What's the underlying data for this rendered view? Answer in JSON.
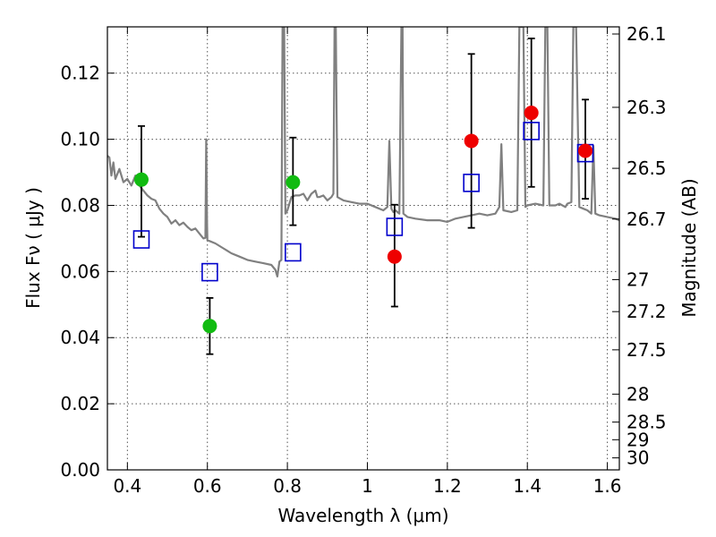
{
  "chart_data": {
    "type": "scatter",
    "xlabel": "Wavelength  λ (μm)",
    "ylabel": "Flux  Fν  ( μJy )",
    "y2label": "Magnitude (AB)",
    "xlim": [
      0.35,
      1.63
    ],
    "ylim": [
      0.0,
      0.134
    ],
    "grid": true,
    "x_ticks": [
      {
        "value": 0.4,
        "label": "0.4"
      },
      {
        "value": 0.6,
        "label": "0.6"
      },
      {
        "value": 0.8,
        "label": "0.8"
      },
      {
        "value": 1.0,
        "label": "1"
      },
      {
        "value": 1.2,
        "label": "1.2"
      },
      {
        "value": 1.4,
        "label": "1.4"
      },
      {
        "value": 1.6,
        "label": "1.6"
      }
    ],
    "y_ticks": [
      {
        "value": 0.0,
        "label": "0.00"
      },
      {
        "value": 0.02,
        "label": "0.02"
      },
      {
        "value": 0.04,
        "label": "0.04"
      },
      {
        "value": 0.06,
        "label": "0.06"
      },
      {
        "value": 0.08,
        "label": "0.08"
      },
      {
        "value": 0.1,
        "label": "0.10"
      },
      {
        "value": 0.12,
        "label": "0.12"
      }
    ],
    "y2_ticks": [
      {
        "mag": 26.1,
        "label": "26.1"
      },
      {
        "mag": 26.3,
        "label": "26.3"
      },
      {
        "mag": 26.5,
        "label": "26.5"
      },
      {
        "mag": 26.7,
        "label": "26.7"
      },
      {
        "mag": 27.0,
        "label": "27"
      },
      {
        "mag": 27.2,
        "label": "27.2"
      },
      {
        "mag": 27.5,
        "label": "27.5"
      },
      {
        "mag": 28.0,
        "label": "28"
      },
      {
        "mag": 28.5,
        "label": "28.5"
      },
      {
        "mag": 29.0,
        "label": "29"
      },
      {
        "mag": 30.0,
        "label": "30"
      }
    ],
    "colors": {
      "green": "#11bb11",
      "red": "#ee0000",
      "model": "#0000cc",
      "spectrum": "#808080"
    },
    "series": [
      {
        "name": "green-detections",
        "kind": "errorbar-point",
        "color": "#11bb11",
        "points": [
          {
            "x": 0.435,
            "y": 0.0878,
            "ylo": 0.0705,
            "yhi": 0.104
          },
          {
            "x": 0.606,
            "y": 0.0435,
            "ylo": 0.035,
            "yhi": 0.052
          },
          {
            "x": 0.814,
            "y": 0.087,
            "ylo": 0.074,
            "yhi": 0.1005
          }
        ]
      },
      {
        "name": "red-detections",
        "kind": "errorbar-point",
        "color": "#ee0000",
        "points": [
          {
            "x": 1.068,
            "y": 0.0645,
            "ylo": 0.0494,
            "yhi": 0.0802
          },
          {
            "x": 1.26,
            "y": 0.0995,
            "ylo": 0.0732,
            "yhi": 0.1258
          },
          {
            "x": 1.41,
            "y": 0.108,
            "ylo": 0.0856,
            "yhi": 0.1305
          },
          {
            "x": 1.545,
            "y": 0.0965,
            "ylo": 0.082,
            "yhi": 0.112
          }
        ]
      },
      {
        "name": "model-photometry",
        "kind": "open-square",
        "color": "#0000cc",
        "points": [
          {
            "x": 0.435,
            "y": 0.0697
          },
          {
            "x": 0.606,
            "y": 0.0598
          },
          {
            "x": 0.814,
            "y": 0.0658
          },
          {
            "x": 1.068,
            "y": 0.0735
          },
          {
            "x": 1.26,
            "y": 0.0868
          },
          {
            "x": 1.41,
            "y": 0.1025
          },
          {
            "x": 1.545,
            "y": 0.0958
          }
        ]
      },
      {
        "name": "model-spectrum",
        "kind": "line",
        "color": "#808080",
        "points": [
          [
            0.35,
            0.095
          ],
          [
            0.355,
            0.0945
          ],
          [
            0.36,
            0.089
          ],
          [
            0.365,
            0.093
          ],
          [
            0.37,
            0.088
          ],
          [
            0.38,
            0.091
          ],
          [
            0.39,
            0.087
          ],
          [
            0.4,
            0.088
          ],
          [
            0.41,
            0.086
          ],
          [
            0.42,
            0.089
          ],
          [
            0.43,
            0.086
          ],
          [
            0.44,
            0.0845
          ],
          [
            0.45,
            0.083
          ],
          [
            0.46,
            0.082
          ],
          [
            0.47,
            0.0815
          ],
          [
            0.48,
            0.079
          ],
          [
            0.49,
            0.0775
          ],
          [
            0.5,
            0.0765
          ],
          [
            0.51,
            0.0745
          ],
          [
            0.52,
            0.0755
          ],
          [
            0.53,
            0.074
          ],
          [
            0.54,
            0.0748
          ],
          [
            0.55,
            0.0735
          ],
          [
            0.56,
            0.0725
          ],
          [
            0.57,
            0.073
          ],
          [
            0.58,
            0.0715
          ],
          [
            0.59,
            0.07
          ],
          [
            0.595,
            0.0702
          ],
          [
            0.597,
            0.1
          ],
          [
            0.599,
            0.0755
          ],
          [
            0.6,
            0.0695
          ],
          [
            0.62,
            0.0685
          ],
          [
            0.64,
            0.067
          ],
          [
            0.66,
            0.0655
          ],
          [
            0.68,
            0.0645
          ],
          [
            0.7,
            0.0635
          ],
          [
            0.72,
            0.063
          ],
          [
            0.74,
            0.0625
          ],
          [
            0.76,
            0.062
          ],
          [
            0.77,
            0.0605
          ],
          [
            0.775,
            0.0585
          ],
          [
            0.78,
            0.063
          ],
          [
            0.785,
            0.0635
          ],
          [
            0.788,
            0.134
          ],
          [
            0.792,
            0.134
          ],
          [
            0.795,
            0.0775
          ],
          [
            0.8,
            0.0785
          ],
          [
            0.81,
            0.0825
          ],
          [
            0.82,
            0.083
          ],
          [
            0.83,
            0.083
          ],
          [
            0.84,
            0.0835
          ],
          [
            0.85,
            0.0815
          ],
          [
            0.86,
            0.0835
          ],
          [
            0.87,
            0.0845
          ],
          [
            0.875,
            0.0825
          ],
          [
            0.88,
            0.0825
          ],
          [
            0.89,
            0.083
          ],
          [
            0.9,
            0.0815
          ],
          [
            0.91,
            0.0825
          ],
          [
            0.915,
            0.0835
          ],
          [
            0.918,
            0.134
          ],
          [
            0.921,
            0.134
          ],
          [
            0.925,
            0.0825
          ],
          [
            0.94,
            0.0815
          ],
          [
            0.96,
            0.081
          ],
          [
            0.98,
            0.0805
          ],
          [
            1.0,
            0.0805
          ],
          [
            1.02,
            0.0795
          ],
          [
            1.04,
            0.0785
          ],
          [
            1.05,
            0.0795
          ],
          [
            1.055,
            0.0995
          ],
          [
            1.06,
            0.079
          ],
          [
            1.065,
            0.078
          ],
          [
            1.07,
            0.0785
          ],
          [
            1.08,
            0.0775
          ],
          [
            1.085,
            0.134
          ],
          [
            1.088,
            0.134
          ],
          [
            1.09,
            0.0775
          ],
          [
            1.1,
            0.0765
          ],
          [
            1.12,
            0.076
          ],
          [
            1.15,
            0.0755
          ],
          [
            1.18,
            0.0755
          ],
          [
            1.2,
            0.075
          ],
          [
            1.22,
            0.076
          ],
          [
            1.24,
            0.0765
          ],
          [
            1.26,
            0.077
          ],
          [
            1.28,
            0.0775
          ],
          [
            1.3,
            0.077
          ],
          [
            1.32,
            0.0775
          ],
          [
            1.33,
            0.0795
          ],
          [
            1.335,
            0.0985
          ],
          [
            1.34,
            0.0785
          ],
          [
            1.36,
            0.078
          ],
          [
            1.375,
            0.0785
          ],
          [
            1.38,
            0.134
          ],
          [
            1.39,
            0.134
          ],
          [
            1.395,
            0.0795
          ],
          [
            1.4,
            0.08
          ],
          [
            1.42,
            0.0805
          ],
          [
            1.44,
            0.08
          ],
          [
            1.445,
            0.134
          ],
          [
            1.45,
            0.134
          ],
          [
            1.455,
            0.08
          ],
          [
            1.47,
            0.08
          ],
          [
            1.48,
            0.0805
          ],
          [
            1.495,
            0.0795
          ],
          [
            1.5,
            0.0805
          ],
          [
            1.51,
            0.081
          ],
          [
            1.515,
            0.134
          ],
          [
            1.522,
            0.134
          ],
          [
            1.53,
            0.0795
          ],
          [
            1.54,
            0.079
          ],
          [
            1.55,
            0.0785
          ],
          [
            1.56,
            0.0775
          ],
          [
            1.565,
            0.098
          ],
          [
            1.57,
            0.0775
          ],
          [
            1.58,
            0.077
          ],
          [
            1.6,
            0.0765
          ],
          [
            1.62,
            0.076
          ],
          [
            1.63,
            0.0755
          ]
        ]
      }
    ]
  }
}
